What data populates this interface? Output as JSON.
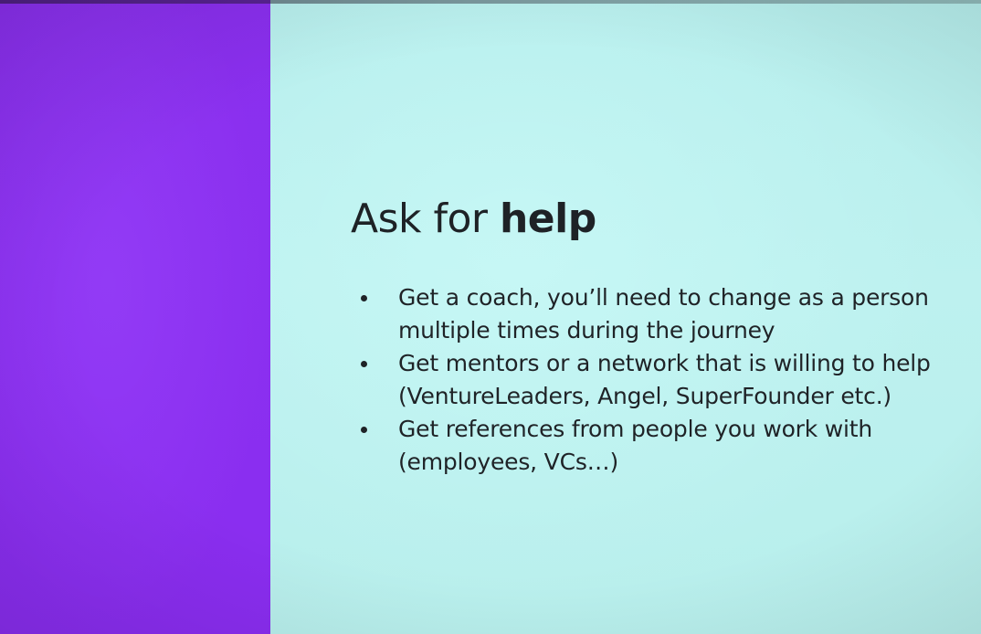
{
  "slide": {
    "title_regular": "Ask for ",
    "title_bold": "help",
    "bullets": [
      {
        "line1": "Get a coach, you’ll need to change as a person",
        "line2": "multiple times during the journey"
      },
      {
        "line1": "Get mentors or a network that is willing to help",
        "line2": "(VentureLeaders, Angel, SuperFounder etc.)"
      },
      {
        "line1": "Get references from people you work with",
        "line2": "(employees, VCs…)"
      }
    ]
  },
  "colors": {
    "left_panel": "#8a2fee",
    "slide_background": "#b8efec",
    "text": "#1f2327"
  }
}
